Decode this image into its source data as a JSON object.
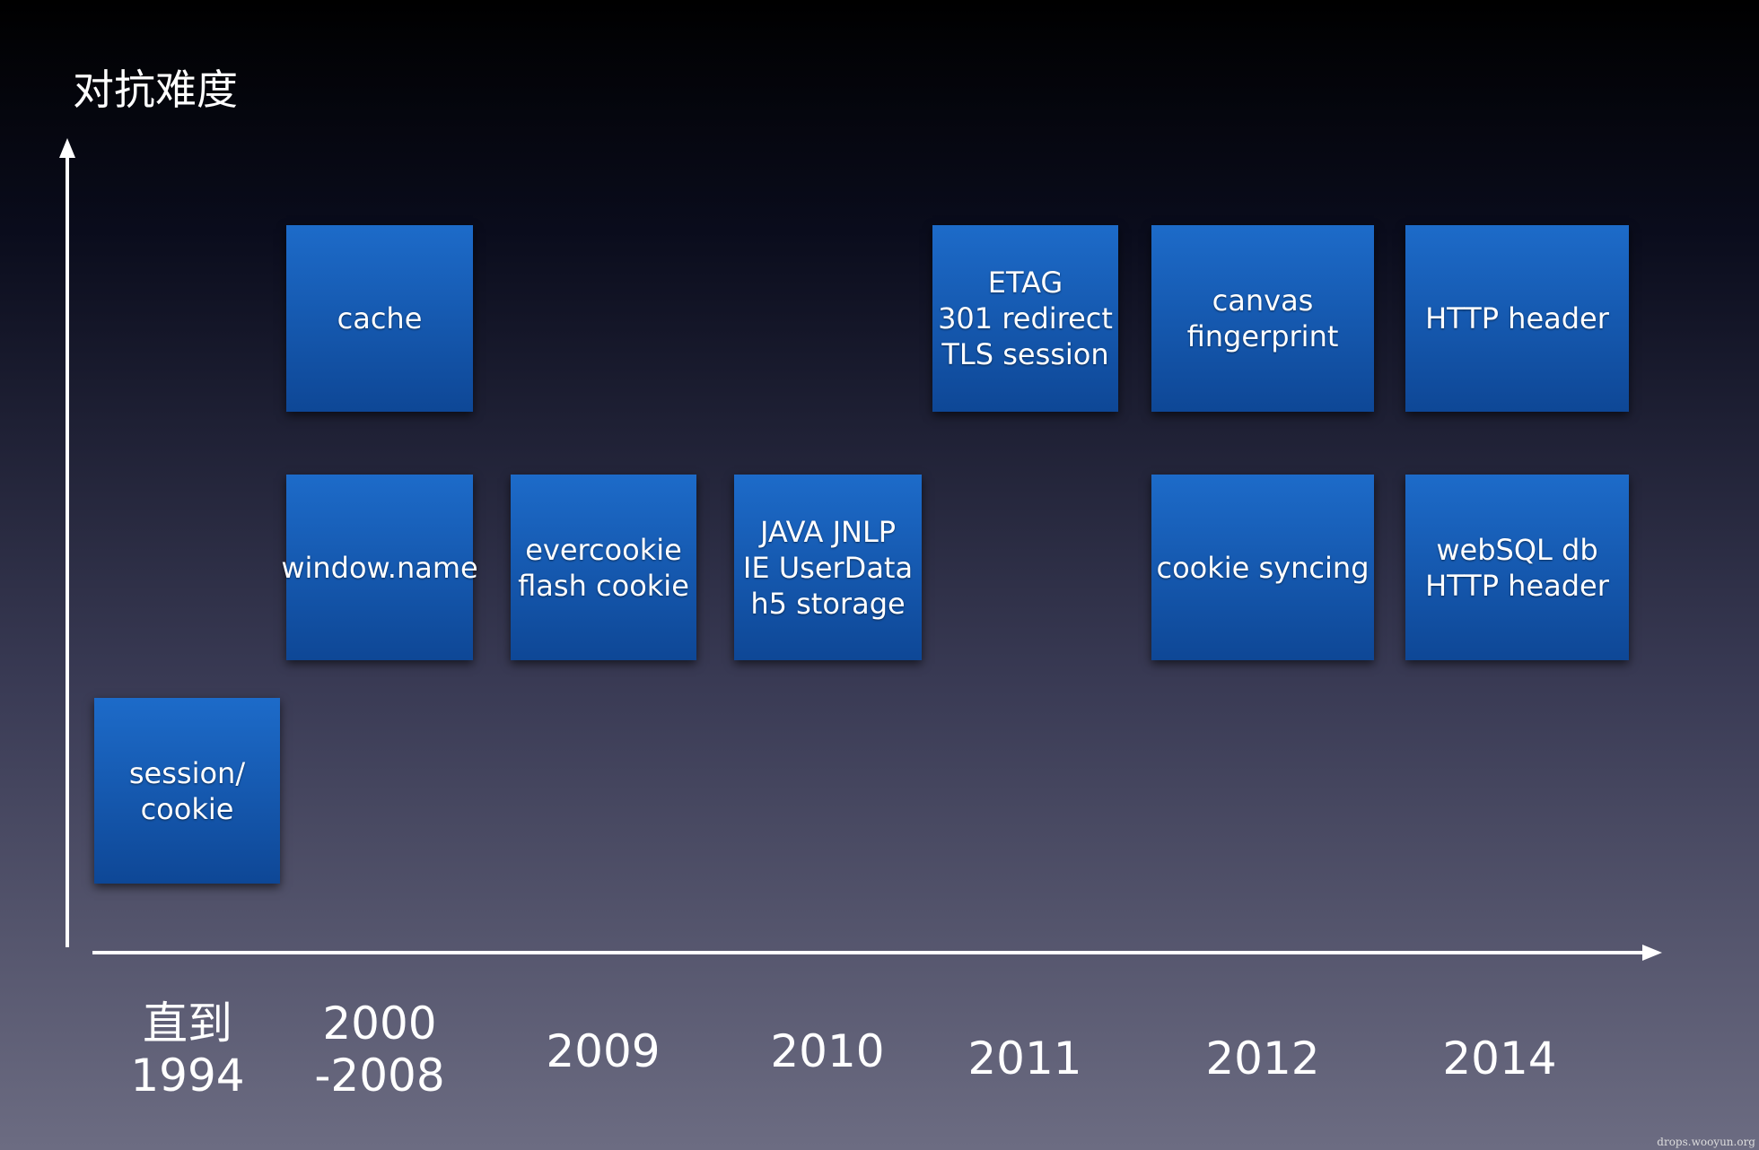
{
  "header": {
    "y_label": "对抗难度"
  },
  "boxes": [
    {
      "lines": [
        "session/",
        "cookie"
      ]
    },
    {
      "lines": [
        "cache"
      ]
    },
    {
      "lines": [
        "window.name"
      ]
    },
    {
      "lines": [
        "evercookie",
        "flash cookie"
      ]
    },
    {
      "lines": [
        "JAVA JNLP",
        "IE UserData",
        "h5 storage"
      ]
    },
    {
      "lines": [
        "ETAG",
        "301 redirect",
        "TLS session"
      ]
    },
    {
      "lines": [
        "canvas",
        "fingerprint"
      ]
    },
    {
      "lines": [
        "HTTP header"
      ]
    },
    {
      "lines": [
        "cookie syncing"
      ]
    },
    {
      "lines": [
        "webSQL db",
        "HTTP header"
      ]
    }
  ],
  "x_labels": [
    {
      "lines": [
        "直到",
        "1994"
      ]
    },
    {
      "lines": [
        "2000",
        "-2008"
      ]
    },
    {
      "lines": [
        "2009"
      ]
    },
    {
      "lines": [
        "2010"
      ]
    },
    {
      "lines": [
        "2011"
      ]
    },
    {
      "lines": [
        "2012"
      ]
    },
    {
      "lines": [
        "2014"
      ]
    }
  ],
  "watermark": "drops.wooyun.org"
}
